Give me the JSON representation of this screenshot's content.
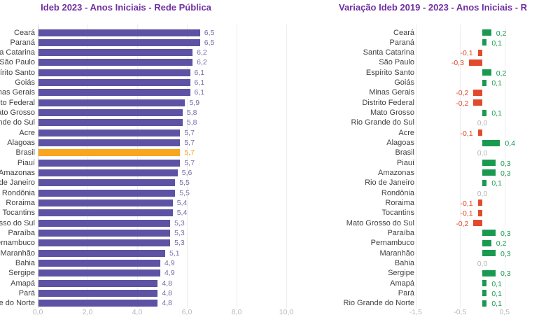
{
  "colors": {
    "title": "#7030A0",
    "bar_purple": "#5D52A4",
    "bar_highlight_orange": "#F9A51E",
    "bar_positive_green": "#1A9A50",
    "bar_negative_red": "#E14B2C",
    "value_label_purple": "#746CA6",
    "zero_label_gray": "#B6B6B6",
    "tick_label_gray": "#B6B6B6",
    "category_label": "#404040",
    "gridline": "#ECECEC",
    "axis_line": "#CFCFCF"
  },
  "chart_data": [
    {
      "id": "ideb-2023",
      "type": "bar",
      "orientation": "horizontal",
      "title": "Ideb 2023 - Anos Iniciais - Rede Pública",
      "categories": [
        "Ceará",
        "Paraná",
        "Santa Catarina",
        "São Paulo",
        "Espírito Santo",
        "Goiás",
        "Minas Gerais",
        "Distrito Federal",
        "Mato Grosso",
        "Rio Grande do Sul",
        "Acre",
        "Alagoas",
        "Brasil",
        "Piauí",
        "Amazonas",
        "Rio de Janeiro",
        "Rondônia",
        "Roraima",
        "Tocantins",
        "Mato Grosso do Sul",
        "Paraíba",
        "Pernambuco",
        "Maranhão",
        "Bahia",
        "Sergipe",
        "Amapá",
        "Pará",
        "Rio Grande do Norte"
      ],
      "values": [
        6.5,
        6.5,
        6.2,
        6.2,
        6.1,
        6.1,
        6.1,
        5.9,
        5.8,
        5.8,
        5.7,
        5.7,
        5.7,
        5.7,
        5.6,
        5.5,
        5.5,
        5.4,
        5.4,
        5.3,
        5.3,
        5.3,
        5.1,
        4.9,
        4.9,
        4.8,
        4.8,
        4.8
      ],
      "value_labels": [
        "6,5",
        "6,5",
        "6,2",
        "6,2",
        "6,1",
        "6,1",
        "6,1",
        "5,9",
        "5,8",
        "5,8",
        "5,7",
        "5,7",
        "5,7",
        "5,7",
        "5,6",
        "5,5",
        "5,5",
        "5,4",
        "5,4",
        "5,3",
        "5,3",
        "5,3",
        "5,1",
        "4,9",
        "4,9",
        "4,8",
        "4,8",
        "4,8"
      ],
      "highlight_category": "Brasil",
      "xlim": [
        0,
        10.9
      ],
      "xticks": [
        0,
        2,
        4,
        6,
        8,
        10
      ],
      "xtick_labels": [
        "0,0",
        "2,0",
        "4,0",
        "6,0",
        "8,0",
        "10,0"
      ],
      "grid": true,
      "legend": false
    },
    {
      "id": "variacao-ideb-2019-2023",
      "type": "bar",
      "orientation": "horizontal",
      "title": "Variação Ideb 2019 - 2023 - Anos Iniciais - R",
      "categories": [
        "Ceará",
        "Paraná",
        "Santa Catarina",
        "São Paulo",
        "Espírito Santo",
        "Goiás",
        "Minas Gerais",
        "Distrito Federal",
        "Mato Grosso",
        "Rio Grande do Sul",
        "Acre",
        "Alagoas",
        "Brasil",
        "Piauí",
        "Amazonas",
        "Rio de Janeiro",
        "Rondônia",
        "Roraima",
        "Tocantins",
        "Mato Grosso do Sul",
        "Paraíba",
        "Pernambuco",
        "Maranhão",
        "Bahia",
        "Sergipe",
        "Amapá",
        "Pará",
        "Rio Grande do Norte"
      ],
      "values": [
        0.2,
        0.1,
        -0.1,
        -0.3,
        0.2,
        0.1,
        -0.2,
        -0.2,
        0.1,
        0.0,
        -0.1,
        0.4,
        0.0,
        0.3,
        0.3,
        0.1,
        0.0,
        -0.1,
        -0.1,
        -0.2,
        0.3,
        0.2,
        0.3,
        0.0,
        0.3,
        0.1,
        0.1,
        0.1
      ],
      "value_labels": [
        "0,2",
        "0,1",
        "-0,1",
        "-0,3",
        "0,2",
        "0,1",
        "-0,2",
        "-0,2",
        "0,1",
        "0,0",
        "-0,1",
        "0,4",
        "0,0",
        "0,3",
        "0,3",
        "0,1",
        "0,0",
        "-0,1",
        "-0,1",
        "-0,2",
        "0,3",
        "0,2",
        "0,3",
        "0,0",
        "0,3",
        "0,1",
        "0,1",
        "0,1"
      ],
      "xlim": [
        -1.5,
        0.5
      ],
      "xticks": [
        -1.5,
        -0.5,
        0.5
      ],
      "xtick_labels": [
        "-1,5",
        "-0,5",
        "0,5"
      ],
      "grid": true,
      "legend": false
    }
  ]
}
